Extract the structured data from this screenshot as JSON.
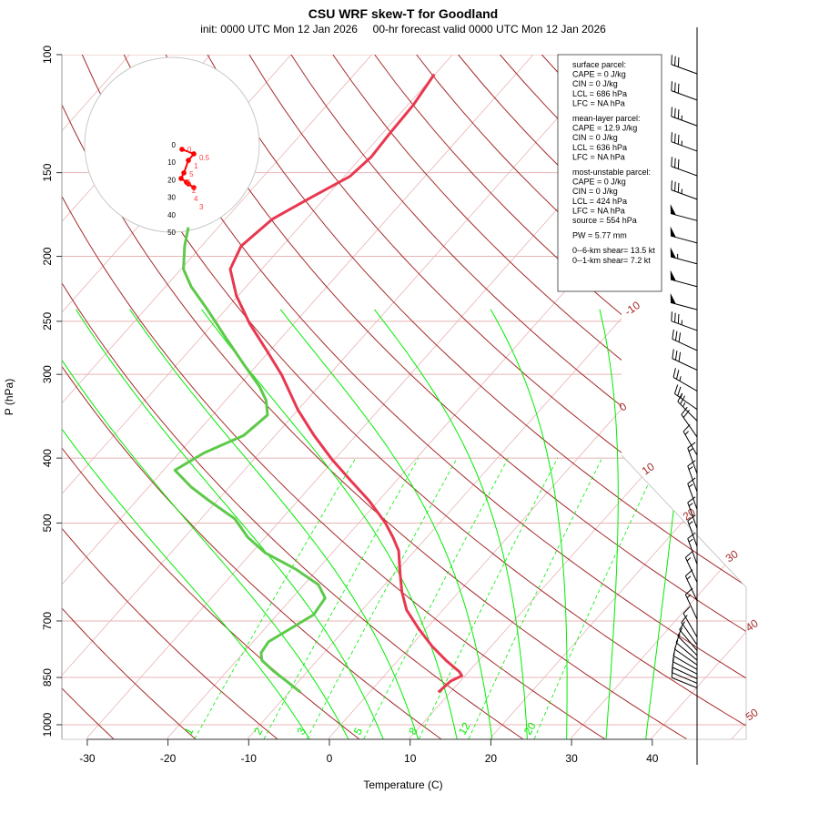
{
  "chart_data": {
    "type": "line",
    "title": "CSU WRF skew-T for Goodland",
    "subtitle": "init: 0000 UTC Mon 12 Jan 2026     00-hr forecast valid 0000 UTC Mon 12 Jan 2026",
    "xlabel": "Temperature (C)",
    "ylabel": "P (hPa)",
    "xlim": [
      -33,
      45
    ],
    "ylim": [
      1050,
      100
    ],
    "y_scale": "log",
    "x_ticks": [
      "-30",
      "-20",
      "-10",
      "0",
      "10",
      "20",
      "30",
      "40"
    ],
    "y_ticks": [
      "100",
      "150",
      "200",
      "250",
      "300",
      "400",
      "500",
      "700",
      "850",
      "1000"
    ],
    "grid": true,
    "colors": {
      "temperature": "#e8384f",
      "dewpoint": "#5ec94a",
      "isotherm": "#e8b4b4",
      "dry_adiabat": "#a52a2a",
      "moist_adiabat": "#00ee00",
      "mixing_ratio": "#00ee00",
      "hodograph": "#ff0000"
    },
    "series": [
      {
        "name": "temperature",
        "p": [
          894,
          861,
          845,
          834,
          801,
          764,
          718,
          674,
          633,
          595,
          550,
          525,
          499,
          463,
          432,
          402,
          370,
          339,
          301,
          276,
          252,
          229,
          209,
          193,
          176,
          164,
          152,
          142,
          131,
          119,
          107
        ],
        "t": [
          8.5,
          8.8,
          9.6,
          8.9,
          5.9,
          2.7,
          -1.0,
          -4.5,
          -7.1,
          -9.3,
          -12.0,
          -14.2,
          -16.8,
          -21.2,
          -25.7,
          -30.3,
          -35.2,
          -40.0,
          -45.8,
          -50.5,
          -55.5,
          -60.2,
          -63.9,
          -65.1,
          -64.2,
          -61.9,
          -59.3,
          -58.8,
          -59.1,
          -59.3,
          -60.1
        ]
      },
      {
        "name": "dewpoint",
        "p": [
          894,
          861,
          831,
          801,
          781,
          752,
          718,
          685,
          647,
          618,
          586,
          554,
          525,
          493,
          463,
          442,
          417,
          393,
          370,
          345,
          328,
          313,
          290,
          264,
          240,
          222,
          209,
          193,
          181
        ],
        "t": [
          -8.6,
          -11.5,
          -14.3,
          -16.9,
          -17.8,
          -18.1,
          -16.8,
          -15.5,
          -15.9,
          -18.2,
          -22.7,
          -28.3,
          -32.2,
          -35.8,
          -41.0,
          -44.7,
          -48.6,
          -46.9,
          -43.9,
          -43.2,
          -45.0,
          -47.3,
          -51.7,
          -57.0,
          -62.3,
          -66.8,
          -69.7,
          -72.1,
          -73.7
        ]
      }
    ],
    "dry_adiabat_labels": [
      "-10",
      "0",
      "10",
      "20",
      "30",
      "40",
      "50"
    ],
    "dry_adiabats_c": [
      -40,
      -30,
      -20,
      -10,
      0,
      10,
      20,
      30,
      40,
      50,
      60,
      70,
      80,
      90,
      100,
      110,
      120,
      130,
      140,
      150,
      160,
      170,
      180,
      190,
      200
    ],
    "moist_adiabats_c": [
      -5,
      0,
      4.5,
      9,
      14,
      18.5,
      23,
      28,
      33,
      38
    ],
    "mixing_ratio_labels": [
      "1",
      "2",
      "3",
      "5",
      "8",
      "12",
      "20"
    ],
    "mixing_ratios_gkg": [
      1,
      2,
      3,
      5,
      8,
      12,
      20
    ],
    "wind_barbs": [
      {
        "p": 106.8,
        "dir": 290,
        "kt": 30
      },
      {
        "p": 116.9,
        "dir": 290,
        "kt": 30
      },
      {
        "p": 127.7,
        "dir": 290,
        "kt": 35
      },
      {
        "p": 139.3,
        "dir": 290,
        "kt": 35
      },
      {
        "p": 151.6,
        "dir": 290,
        "kt": 30
      },
      {
        "p": 164.4,
        "dir": 290,
        "kt": 35
      },
      {
        "p": 176.9,
        "dir": 285,
        "kt": 50
      },
      {
        "p": 191.0,
        "dir": 285,
        "kt": 50
      },
      {
        "p": 205.2,
        "dir": 285,
        "kt": 55
      },
      {
        "p": 221.9,
        "dir": 285,
        "kt": 50
      },
      {
        "p": 240.2,
        "dir": 285,
        "kt": 50
      },
      {
        "p": 258,
        "dir": 290,
        "kt": 35
      },
      {
        "p": 276.4,
        "dir": 295,
        "kt": 30
      },
      {
        "p": 295.6,
        "dir": 295,
        "kt": 30
      },
      {
        "p": 317.6,
        "dir": 300,
        "kt": 25
      },
      {
        "p": 338.4,
        "dir": 305,
        "kt": 25
      },
      {
        "p": 352,
        "dir": 315,
        "kt": 25
      },
      {
        "p": 372,
        "dir": 325,
        "kt": 20
      },
      {
        "p": 396,
        "dir": 330,
        "kt": 15
      },
      {
        "p": 422,
        "dir": 340,
        "kt": 15
      },
      {
        "p": 449,
        "dir": 340,
        "kt": 15
      },
      {
        "p": 477,
        "dir": 340,
        "kt": 15
      },
      {
        "p": 509,
        "dir": 340,
        "kt": 15
      },
      {
        "p": 542,
        "dir": 340,
        "kt": 15
      },
      {
        "p": 576,
        "dir": 340,
        "kt": 15
      },
      {
        "p": 613,
        "dir": 335,
        "kt": 15
      },
      {
        "p": 653,
        "dir": 335,
        "kt": 15
      },
      {
        "p": 696,
        "dir": 335,
        "kt": 15
      },
      {
        "p": 740,
        "dir": 330,
        "kt": 10
      },
      {
        "p": 760,
        "dir": 325,
        "kt": 10
      },
      {
        "p": 775,
        "dir": 320,
        "kt": 10
      },
      {
        "p": 788,
        "dir": 315,
        "kt": 10
      },
      {
        "p": 801,
        "dir": 310,
        "kt": 10
      },
      {
        "p": 814,
        "dir": 305,
        "kt": 10
      },
      {
        "p": 827,
        "dir": 300,
        "kt": 10
      },
      {
        "p": 840,
        "dir": 297,
        "kt": 10
      },
      {
        "p": 854,
        "dir": 295,
        "kt": 10
      },
      {
        "p": 867,
        "dir": 293,
        "kt": 10
      },
      {
        "p": 881,
        "dir": 292,
        "kt": 10
      }
    ],
    "hodograph": {
      "ring_labels": [
        "0",
        "10",
        "20",
        "30",
        "40",
        "50"
      ],
      "rings_kt": [
        10,
        20,
        30,
        40,
        50
      ],
      "points": [
        {
          "label": "0",
          "u": 5.7,
          "v": -2.6
        },
        {
          "label": "0.5",
          "u": 12.5,
          "v": -5.2
        },
        {
          "label": "1",
          "u": 9.4,
          "v": -8.9
        },
        {
          "label": "5",
          "u": 6.8,
          "v": -16.1
        },
        {
          "label": "6",
          "u": 5.2,
          "v": -19.3
        },
        {
          "label": "2",
          "u": 8.3,
          "v": -21.4
        },
        {
          "label": "4",
          "u": 9.4,
          "v": -22.4
        },
        {
          "label": "3",
          "u": 12.5,
          "v": -24.5
        }
      ]
    },
    "indices": [
      "surface parcel:",
      "CAPE = 0 J/kg",
      "CIN = 0 J/kg",
      "LCL = 686 hPa",
      "LFC = NA hPa",
      "",
      "mean-layer parcel:",
      "CAPE = 12.9 J/kg",
      "CIN = 0 J/kg",
      "LCL = 636 hPa",
      "LFC = NA hPa",
      "",
      "most-unstable parcel:",
      "CAPE = 0 J/kg",
      "CIN = 0 J/kg",
      "LCL = 424 hPa",
      "LFC = NA hPa",
      "source = 554 hPa",
      "",
      "PW =  5.77 mm",
      "",
      "0--6-km shear= 13.5 kt",
      "0--1-km shear= 7.2 kt"
    ]
  }
}
